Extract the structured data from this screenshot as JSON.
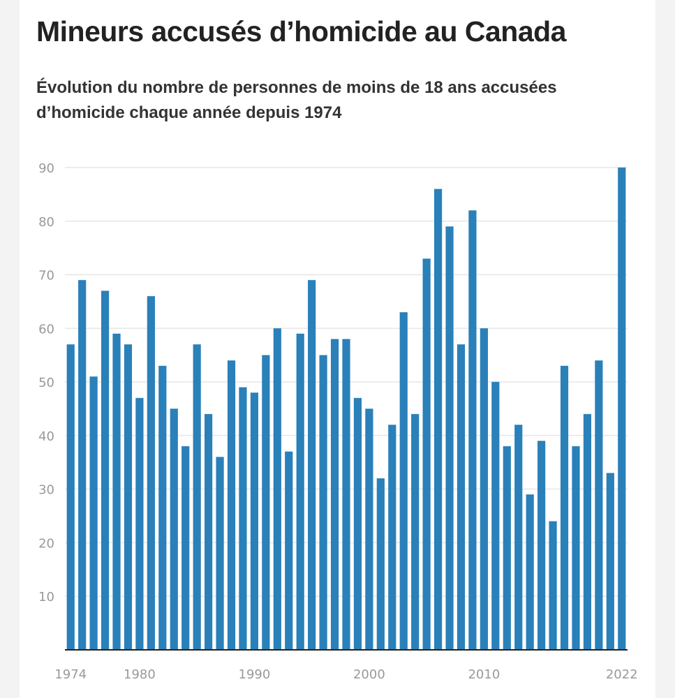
{
  "title": "Mineurs accusés d’homicide au Canada",
  "subtitle": "Évolution du nombre de personnes de moins de 18 ans accusées d’homicide chaque année depuis 1974",
  "colors": {
    "bar": "#2a80b9",
    "grid": "#e6e6e6",
    "axis": "#222222",
    "tick_text": "#999999",
    "title": "#222222",
    "background": "#ffffff"
  },
  "chart_data": {
    "type": "bar",
    "title": "Mineurs accusés d’homicide au Canada",
    "subtitle": "Évolution du nombre de personnes de moins de 18 ans accusées d’homicide chaque année depuis 1974",
    "xlabel": "",
    "ylabel": "",
    "ylim": [
      0,
      90
    ],
    "y_ticks": [
      10,
      20,
      30,
      40,
      50,
      60,
      70,
      80,
      90
    ],
    "x_tick_labels": [
      "1974",
      "1980",
      "1990",
      "2000",
      "2010",
      "2022"
    ],
    "grid": true,
    "legend": "none",
    "categories": [
      1974,
      1975,
      1976,
      1977,
      1978,
      1979,
      1980,
      1981,
      1982,
      1983,
      1984,
      1985,
      1986,
      1987,
      1988,
      1989,
      1990,
      1991,
      1992,
      1993,
      1994,
      1995,
      1996,
      1997,
      1998,
      1999,
      2000,
      2001,
      2002,
      2003,
      2004,
      2005,
      2006,
      2007,
      2008,
      2009,
      2010,
      2011,
      2012,
      2013,
      2014,
      2015,
      2016,
      2017,
      2018,
      2019,
      2020,
      2021,
      2022
    ],
    "values": [
      57,
      69,
      51,
      67,
      59,
      57,
      47,
      66,
      53,
      45,
      38,
      57,
      44,
      36,
      54,
      49,
      48,
      55,
      60,
      37,
      59,
      69,
      55,
      58,
      58,
      47,
      45,
      32,
      42,
      63,
      44,
      73,
      86,
      79,
      57,
      82,
      60,
      50,
      38,
      42,
      29,
      39,
      24,
      53,
      38,
      44,
      54,
      33,
      90
    ]
  }
}
